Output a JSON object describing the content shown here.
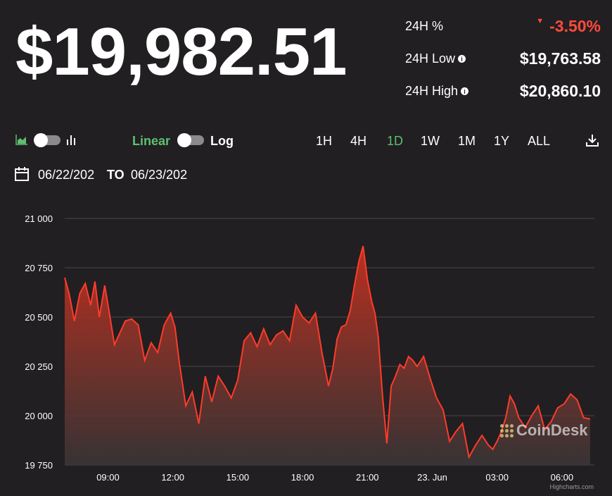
{
  "header": {
    "price": "$19,982.51",
    "stats": [
      {
        "label": "24H %",
        "value": "-3.50%",
        "negative": true
      },
      {
        "label": "24H Low",
        "value": "$19,763.58",
        "info": true
      },
      {
        "label": "24H High",
        "value": "$20,860.10",
        "info": true
      }
    ]
  },
  "toolbar": {
    "chart_type_area_icon": "area-chart-icon",
    "chart_type_bar_icon": "bar-chart-icon",
    "scale_linear": "Linear",
    "scale_log": "Log",
    "ranges": [
      "1H",
      "4H",
      "1D",
      "1W",
      "1M",
      "1Y",
      "ALL"
    ],
    "active_range": "1D",
    "download_icon": "download-icon"
  },
  "dates": {
    "from": "06/22/202",
    "to_label": "TO",
    "to": "06/23/202"
  },
  "colors": {
    "line": "#ff3b2a",
    "fill_top": "#c2301f",
    "fill_bottom": "#3a3536",
    "active": "#5fbf6f",
    "negative": "#ff4a3d",
    "background": "#211f21"
  },
  "watermark": "CoinDesk",
  "credit": "Highcharts.com",
  "chart_data": {
    "type": "area",
    "title": "",
    "xlabel": "",
    "ylabel": "",
    "ylim": [
      19750,
      21000
    ],
    "yticks": [
      "21 000",
      "20 750",
      "20 500",
      "20 250",
      "20 000",
      "19 750"
    ],
    "ytick_values": [
      21000,
      20750,
      20500,
      20250,
      20000,
      19750
    ],
    "xticks": [
      "09:00",
      "12:00",
      "15:00",
      "18:00",
      "21:00",
      "23. Jun",
      "03:00",
      "06:00"
    ],
    "xtick_hours": [
      9,
      12,
      15,
      18,
      21,
      24,
      27,
      30
    ],
    "xlim_hours": [
      7,
      31.5
    ],
    "series": [
      {
        "x": [
          7.0,
          7.2,
          7.45,
          7.7,
          7.95,
          8.2,
          8.4,
          8.6,
          8.85,
          9.05,
          9.3,
          9.55,
          9.8,
          10.1,
          10.4,
          10.7,
          11.0,
          11.3,
          11.6,
          11.9,
          12.1,
          12.3,
          12.6,
          12.9,
          13.2,
          13.5,
          13.8,
          14.1,
          14.4,
          14.7,
          15.0,
          15.3,
          15.6,
          15.9,
          16.2,
          16.5,
          16.8,
          17.1,
          17.4,
          17.7,
          18.0,
          18.3,
          18.6,
          18.9,
          19.2,
          19.4,
          19.6,
          19.8,
          20.0,
          20.2,
          20.4,
          20.6,
          20.8,
          21.0,
          21.2,
          21.35,
          21.5,
          21.7,
          21.9,
          22.1,
          22.3,
          22.5,
          22.7,
          22.9,
          23.1,
          23.3,
          23.6,
          23.9,
          24.2,
          24.5,
          24.8,
          25.1,
          25.4,
          25.7,
          26.0,
          26.3,
          26.6,
          26.8,
          27.0,
          27.2,
          27.4,
          27.6,
          27.8,
          28.0,
          28.3,
          28.6,
          28.9,
          29.2,
          29.5,
          29.8,
          30.1,
          30.4,
          30.7,
          31.0,
          31.3
        ],
        "y": [
          20700,
          20620,
          20480,
          20620,
          20670,
          20560,
          20680,
          20500,
          20660,
          20530,
          20360,
          20420,
          20480,
          20490,
          20460,
          20280,
          20370,
          20320,
          20460,
          20520,
          20450,
          20270,
          20050,
          20120,
          19960,
          20200,
          20070,
          20200,
          20150,
          20090,
          20180,
          20380,
          20420,
          20350,
          20440,
          20360,
          20410,
          20430,
          20380,
          20560,
          20500,
          20470,
          20520,
          20320,
          20150,
          20240,
          20390,
          20450,
          20460,
          20530,
          20660,
          20780,
          20860,
          20690,
          20580,
          20520,
          20400,
          20100,
          19860,
          20150,
          20200,
          20260,
          20240,
          20300,
          20280,
          20250,
          20300,
          20190,
          20090,
          20030,
          19870,
          19920,
          19960,
          19790,
          19850,
          19900,
          19850,
          19830,
          19870,
          19920,
          19990,
          20100,
          20060,
          19990,
          19940,
          20000,
          20050,
          19930,
          19970,
          20040,
          20060,
          20110,
          20080,
          19990,
          19982.51
        ]
      }
    ]
  }
}
